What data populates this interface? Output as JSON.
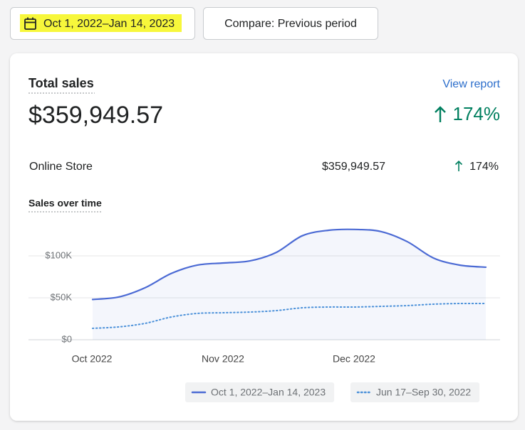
{
  "header": {
    "date_range": "Oct 1, 2022–Jan 14, 2023",
    "compare": "Compare: Previous period"
  },
  "card": {
    "title": "Total sales",
    "link": "View report",
    "total": "$359,949.57",
    "change": "174%",
    "rows": [
      {
        "label": "Online Store",
        "value": "$359,949.57",
        "change": "174%"
      }
    ]
  },
  "chart_data": {
    "type": "line",
    "title": "Sales over time",
    "categories": [
      "Oct 2022",
      null,
      null,
      null,
      null,
      "Nov 2022",
      null,
      null,
      null,
      null,
      "Dec 2022",
      null,
      null,
      null,
      null,
      null
    ],
    "series": [
      {
        "name": "Oct 1, 2022–Jan 14, 2023",
        "color": "#4b6ad4",
        "style": "solid",
        "values": [
          48000,
          51000,
          62000,
          79000,
          89000,
          91500,
          94000,
          104000,
          124000,
          130500,
          131500,
          129000,
          117000,
          97500,
          89000,
          86500
        ]
      },
      {
        "name": "Jun 17–Sep 30, 2022",
        "color": "#4a90d9",
        "style": "dotted",
        "values": [
          13600,
          15300,
          19500,
          27100,
          31400,
          32200,
          33000,
          34700,
          38100,
          39000,
          39000,
          39800,
          40700,
          42400,
          43200,
          43200
        ]
      }
    ],
    "ylim": [
      0,
      150000
    ],
    "yticks": [
      {
        "value": 0,
        "label": "$0"
      },
      {
        "value": 50000,
        "label": "$50K"
      },
      {
        "value": 100000,
        "label": "$100K"
      }
    ],
    "grid": true,
    "area": true
  }
}
